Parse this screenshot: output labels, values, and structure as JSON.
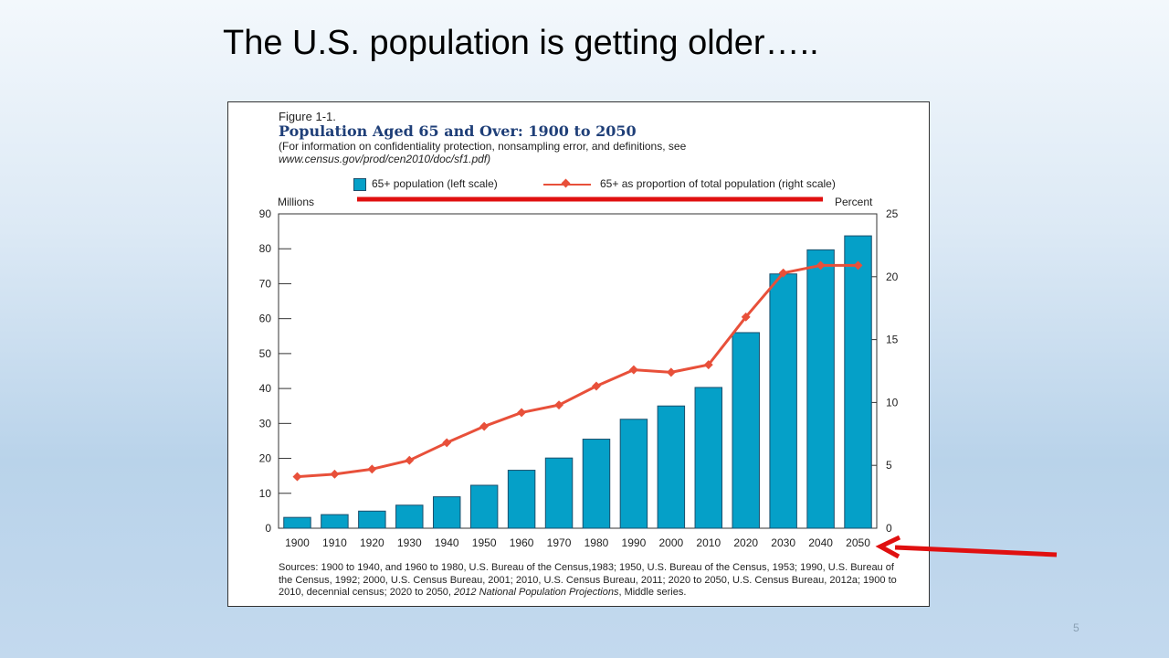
{
  "slide": {
    "title": "The U.S. population is getting older…..",
    "page_number": "5"
  },
  "figure": {
    "label": "Figure 1-1.",
    "title": "Population Aged 65 and Over: 1900 to 2050",
    "note": "(For information on confidentiality protection, nonsampling error, and definitions, see",
    "url": "www.census.gov/prod/cen2010/doc/sf1.pdf)",
    "sources_part1": "Sources: 1900 to 1940, and 1960 to 1980, U.S. Bureau of the Census,1983; 1950, U.S. Bureau of the Census, 1953; 1990, U.S. Bureau of the Census, 1992; 2000, U.S. Census Bureau, 2001; 2010, U.S. Census Bureau, 2011; 2020 to 2050, U.S. Census Bureau, 2012a; 1900 to 2010, decennial census; 2020 to 2050,",
    "sources_italic": "2012 National Population Projections",
    "sources_part2": ", Middle series."
  },
  "chart_data": {
    "type": "bar",
    "categories": [
      "1900",
      "1910",
      "1920",
      "1930",
      "1940",
      "1950",
      "1960",
      "1970",
      "1980",
      "1990",
      "2000",
      "2010",
      "2020",
      "2030",
      "2040",
      "2050"
    ],
    "series": [
      {
        "name": "65+ population (left scale)",
        "type": "bar",
        "axis": "left",
        "color": "#05a0c8",
        "values": [
          3.1,
          3.9,
          4.9,
          6.6,
          9.0,
          12.3,
          16.6,
          20.1,
          25.5,
          31.2,
          35.0,
          40.3,
          56.0,
          72.8,
          79.7,
          83.7
        ]
      },
      {
        "name": "65+ as proportion of total population (right scale)",
        "type": "line",
        "axis": "right",
        "color": "#e8503a",
        "values": [
          4.1,
          4.3,
          4.7,
          5.4,
          6.8,
          8.1,
          9.2,
          9.8,
          11.3,
          12.6,
          12.4,
          13.0,
          16.8,
          20.3,
          20.9,
          20.9
        ]
      }
    ],
    "ylabel_left": "Millions",
    "ylabel_right": "Percent",
    "ylim_left": [
      0,
      90
    ],
    "ylim_right": [
      0,
      25
    ],
    "yticks_left": [
      0,
      10,
      20,
      30,
      40,
      50,
      60,
      70,
      80,
      90
    ],
    "yticks_right": [
      0,
      5,
      10,
      15,
      20,
      25
    ],
    "grid": false,
    "legend_position": "top"
  },
  "annotations": {
    "underline_color": "#e01010",
    "arrow_color": "#e01010"
  }
}
